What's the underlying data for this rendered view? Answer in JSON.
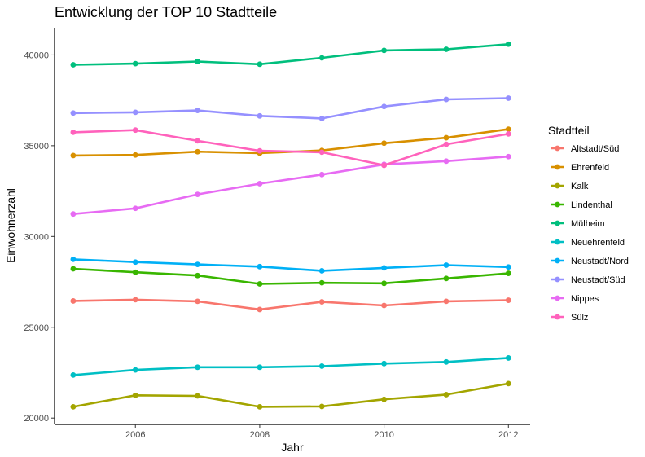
{
  "chart_data": {
    "type": "line",
    "title": "Entwicklung der TOP 10 Stadtteile",
    "xlabel": "Jahr",
    "ylabel": "Einwohnerzahl",
    "x": [
      2005,
      2006,
      2007,
      2008,
      2009,
      2010,
      2011,
      2012
    ],
    "xlim": [
      2004.7,
      2012.35
    ],
    "ylim": [
      19650,
      41500
    ],
    "xticks": [
      2006,
      2008,
      2010,
      2012
    ],
    "yticks": [
      20000,
      25000,
      30000,
      35000,
      40000
    ],
    "grid": false,
    "legend_title": "Stadtteil",
    "legend_position": "right",
    "series": [
      {
        "name": "Altstadt/Süd",
        "color": "#F8766D",
        "values": [
          26450,
          26520,
          26430,
          25980,
          26400,
          26200,
          26430,
          26490
        ]
      },
      {
        "name": "Ehrenfeld",
        "color": "#D89000",
        "values": [
          34460,
          34490,
          34670,
          34590,
          34740,
          35140,
          35440,
          35910
        ]
      },
      {
        "name": "Kalk",
        "color": "#A3A500",
        "values": [
          20620,
          21250,
          21220,
          20620,
          20640,
          21030,
          21290,
          21900
        ]
      },
      {
        "name": "Lindenthal",
        "color": "#39B600",
        "values": [
          28220,
          28030,
          27850,
          27390,
          27450,
          27420,
          27690,
          27970
        ]
      },
      {
        "name": "Mülheim",
        "color": "#00BF7D",
        "values": [
          39460,
          39520,
          39640,
          39490,
          39840,
          40250,
          40310,
          40590
        ]
      },
      {
        "name": "Neuehrenfeld",
        "color": "#00BFC4",
        "values": [
          22370,
          22650,
          22800,
          22800,
          22860,
          23000,
          23090,
          23310
        ]
      },
      {
        "name": "Neustadt/Nord",
        "color": "#00B0F6",
        "values": [
          28740,
          28590,
          28460,
          28340,
          28110,
          28270,
          28420,
          28320
        ]
      },
      {
        "name": "Neustadt/Süd",
        "color": "#9590FF",
        "values": [
          36800,
          36840,
          36940,
          36640,
          36500,
          37160,
          37550,
          37620
        ]
      },
      {
        "name": "Nippes",
        "color": "#E76BF3",
        "values": [
          31240,
          31550,
          32320,
          32910,
          33410,
          33970,
          34150,
          34400
        ]
      },
      {
        "name": "Sülz",
        "color": "#FF62BC",
        "values": [
          35740,
          35860,
          35270,
          34720,
          34640,
          33920,
          35080,
          35650
        ]
      }
    ]
  }
}
